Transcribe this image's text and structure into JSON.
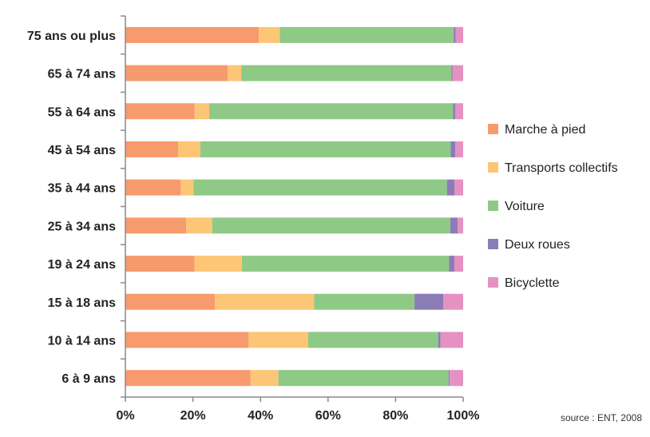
{
  "chart_data": {
    "type": "bar",
    "orientation": "horizontal",
    "stacked": true,
    "normalized": true,
    "categories": [
      "75 ans ou plus",
      "65 à 74 ans",
      "55 à 64 ans",
      "45 à 54 ans",
      "35 à 44 ans",
      "25 à 34 ans",
      "19 à 24 ans",
      "15 à 18 ans",
      "10 à 14 ans",
      "6 à 9 ans"
    ],
    "series": [
      {
        "name": "Marche à pied",
        "color": "#F79A6E",
        "values": [
          39.5,
          30.3,
          20.5,
          15.6,
          16.4,
          18.0,
          20.5,
          26.5,
          36.5,
          37.0
        ]
      },
      {
        "name": "Transports collectifs",
        "color": "#FCC676",
        "values": [
          6.2,
          4.0,
          4.3,
          6.6,
          3.8,
          7.7,
          14.0,
          29.4,
          17.6,
          8.3
        ]
      },
      {
        "name": "Voiture",
        "color": "#8FC986",
        "values": [
          51.5,
          62.2,
          72.2,
          74.1,
          75.0,
          70.5,
          61.3,
          29.7,
          38.5,
          50.4
        ]
      },
      {
        "name": "Deux roues",
        "color": "#8A7DB7",
        "values": [
          0.6,
          0.3,
          0.7,
          1.4,
          2.2,
          2.2,
          1.6,
          8.5,
          0.7,
          0.3
        ]
      },
      {
        "name": "Bicyclette",
        "color": "#E592C2",
        "values": [
          2.2,
          3.2,
          2.3,
          2.3,
          2.6,
          1.6,
          2.6,
          5.9,
          6.7,
          4.0
        ]
      }
    ],
    "x_ticks": [
      "0%",
      "20%",
      "40%",
      "60%",
      "80%",
      "100%"
    ],
    "xlim": [
      0,
      100
    ],
    "grid": false,
    "legend_position": "right",
    "source": "source : ENT, 2008"
  }
}
